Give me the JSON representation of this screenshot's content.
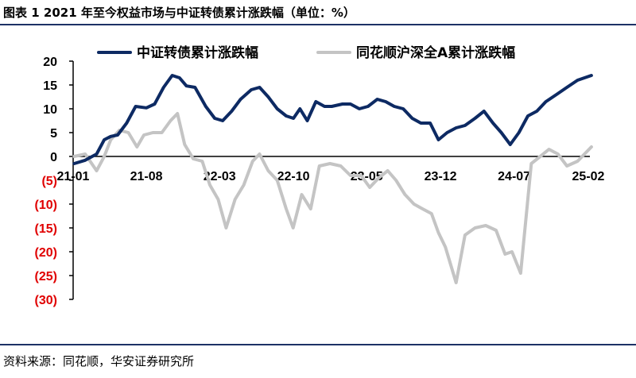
{
  "page": {
    "title": "图表 1 2021 年至今权益市场与中证转债累计涨跌幅（单位：%）",
    "source": "资料来源：同花顺，华安证券研究所"
  },
  "colors": {
    "series1": "#0d2a63",
    "series2": "#c4c4c4",
    "negative_tick": "#e00000",
    "positive_tick": "#000000",
    "axis": "#000000",
    "rule": "#1d3166"
  },
  "chart_data": {
    "type": "line",
    "ylim": [
      -30,
      20
    ],
    "yticks": [
      {
        "value": 20,
        "label": "20"
      },
      {
        "value": 15,
        "label": "15"
      },
      {
        "value": 10,
        "label": "10"
      },
      {
        "value": 5,
        "label": "5"
      },
      {
        "value": 0,
        "label": "0"
      },
      {
        "value": -5,
        "label": "(5)"
      },
      {
        "value": -10,
        "label": "(10)"
      },
      {
        "value": -15,
        "label": "(15)"
      },
      {
        "value": -20,
        "label": "(20)"
      },
      {
        "value": -25,
        "label": "(25)"
      },
      {
        "value": -30,
        "label": "(30)"
      }
    ],
    "x_start": "2021-01",
    "x_end": "2025-02",
    "xticks": [
      {
        "date": "2021-01",
        "label": "21-01"
      },
      {
        "date": "2021-08",
        "label": "21-08"
      },
      {
        "date": "2022-03",
        "label": "22-03"
      },
      {
        "date": "2022-10",
        "label": "22-10"
      },
      {
        "date": "2023-05",
        "label": "23-05"
      },
      {
        "date": "2023-12",
        "label": "23-12"
      },
      {
        "date": "2024-07",
        "label": "24-07"
      },
      {
        "date": "2025-02",
        "label": "25-02"
      }
    ],
    "grid": false,
    "legend_position": "top",
    "series": [
      {
        "name": "中证转债累计涨跌幅",
        "color": "#0d2a63",
        "points": [
          [
            "2021-01-04",
            -1.5
          ],
          [
            "2021-02-05",
            -0.8
          ],
          [
            "2021-03-10",
            0.5
          ],
          [
            "2021-04-01",
            3.5
          ],
          [
            "2021-04-20",
            4.2
          ],
          [
            "2021-05-10",
            4.5
          ],
          [
            "2021-06-05",
            7.0
          ],
          [
            "2021-07-01",
            10.5
          ],
          [
            "2021-08-01",
            10.2
          ],
          [
            "2021-08-25",
            11.0
          ],
          [
            "2021-09-20",
            14.5
          ],
          [
            "2021-10-15",
            17.0
          ],
          [
            "2021-11-05",
            16.5
          ],
          [
            "2021-11-25",
            14.8
          ],
          [
            "2021-12-20",
            14.5
          ],
          [
            "2022-01-20",
            10.5
          ],
          [
            "2022-02-15",
            8.0
          ],
          [
            "2022-03-10",
            7.5
          ],
          [
            "2022-04-05",
            9.5
          ],
          [
            "2022-05-01",
            12.0
          ],
          [
            "2022-06-01",
            14.0
          ],
          [
            "2022-06-25",
            14.5
          ],
          [
            "2022-07-20",
            12.5
          ],
          [
            "2022-08-15",
            10.0
          ],
          [
            "2022-09-10",
            8.5
          ],
          [
            "2022-10-01",
            8.0
          ],
          [
            "2022-10-20",
            10.0
          ],
          [
            "2022-11-10",
            7.5
          ],
          [
            "2022-12-05",
            11.5
          ],
          [
            "2022-12-30",
            10.5
          ],
          [
            "2023-01-20",
            10.5
          ],
          [
            "2023-02-20",
            11.0
          ],
          [
            "2023-03-15",
            11.0
          ],
          [
            "2023-04-10",
            10.0
          ],
          [
            "2023-05-05",
            10.5
          ],
          [
            "2023-06-01",
            12.0
          ],
          [
            "2023-06-25",
            11.5
          ],
          [
            "2023-07-20",
            10.5
          ],
          [
            "2023-08-15",
            10.0
          ],
          [
            "2023-09-10",
            8.0
          ],
          [
            "2023-10-05",
            7.0
          ],
          [
            "2023-11-01",
            7.0
          ],
          [
            "2023-11-25",
            3.5
          ],
          [
            "2023-12-20",
            5.0
          ],
          [
            "2024-01-15",
            6.0
          ],
          [
            "2024-02-10",
            6.5
          ],
          [
            "2024-03-10",
            8.0
          ],
          [
            "2024-04-05",
            9.5
          ],
          [
            "2024-05-01",
            7.0
          ],
          [
            "2024-05-25",
            5.0
          ],
          [
            "2024-06-20",
            2.5
          ],
          [
            "2024-07-15",
            5.0
          ],
          [
            "2024-08-10",
            8.5
          ],
          [
            "2024-09-05",
            9.5
          ],
          [
            "2024-10-01",
            11.5
          ],
          [
            "2024-11-01",
            13.0
          ],
          [
            "2024-12-01",
            14.5
          ],
          [
            "2025-01-01",
            16.0
          ],
          [
            "2025-02-10",
            17.0
          ]
        ]
      },
      {
        "name": "同花顺沪深全A累计涨跌幅",
        "color": "#c4c4c4",
        "points": [
          [
            "2021-01-04",
            0.0
          ],
          [
            "2021-02-05",
            0.5
          ],
          [
            "2021-03-10",
            -3.0
          ],
          [
            "2021-04-01",
            0.0
          ],
          [
            "2021-04-20",
            3.5
          ],
          [
            "2021-05-15",
            5.5
          ],
          [
            "2021-06-10",
            5.0
          ],
          [
            "2021-07-05",
            2.0
          ],
          [
            "2021-07-25",
            4.5
          ],
          [
            "2021-08-20",
            5.0
          ],
          [
            "2021-09-15",
            5.0
          ],
          [
            "2021-10-10",
            7.5
          ],
          [
            "2021-10-30",
            9.0
          ],
          [
            "2021-11-20",
            2.5
          ],
          [
            "2021-12-15",
            -0.5
          ],
          [
            "2022-01-10",
            -1.0
          ],
          [
            "2022-02-01",
            -6.0
          ],
          [
            "2022-02-25",
            -9.0
          ],
          [
            "2022-03-20",
            -15.0
          ],
          [
            "2022-04-15",
            -9.0
          ],
          [
            "2022-05-10",
            -6.0
          ],
          [
            "2022-06-05",
            -1.0
          ],
          [
            "2022-06-25",
            0.5
          ],
          [
            "2022-07-20",
            -3.0
          ],
          [
            "2022-08-15",
            -5.0
          ],
          [
            "2022-09-10",
            -11.0
          ],
          [
            "2022-09-30",
            -15.0
          ],
          [
            "2022-10-25",
            -8.0
          ],
          [
            "2022-11-20",
            -11.0
          ],
          [
            "2022-12-15",
            -2.0
          ],
          [
            "2023-01-15",
            -1.5
          ],
          [
            "2023-02-15",
            -2.0
          ],
          [
            "2023-03-15",
            -4.0
          ],
          [
            "2023-04-15",
            -4.0
          ],
          [
            "2023-05-10",
            -6.5
          ],
          [
            "2023-06-05",
            -4.5
          ],
          [
            "2023-07-01",
            -3.0
          ],
          [
            "2023-07-25",
            -5.0
          ],
          [
            "2023-08-20",
            -8.0
          ],
          [
            "2023-09-15",
            -10.0
          ],
          [
            "2023-10-10",
            -11.0
          ],
          [
            "2023-11-05",
            -12.0
          ],
          [
            "2023-11-25",
            -16.0
          ],
          [
            "2023-12-15",
            -19.0
          ],
          [
            "2024-01-15",
            -26.5
          ],
          [
            "2024-02-10",
            -16.5
          ],
          [
            "2024-03-10",
            -15.0
          ],
          [
            "2024-04-10",
            -14.5
          ],
          [
            "2024-05-10",
            -15.5
          ],
          [
            "2024-06-05",
            -20.5
          ],
          [
            "2024-06-25",
            -20.0
          ],
          [
            "2024-07-20",
            -24.5
          ],
          [
            "2024-08-20",
            -1.5
          ],
          [
            "2024-09-15",
            0.0
          ],
          [
            "2024-10-10",
            1.5
          ],
          [
            "2024-11-05",
            0.5
          ],
          [
            "2024-12-01",
            -2.0
          ],
          [
            "2025-01-01",
            -1.0
          ],
          [
            "2025-02-10",
            2.0
          ]
        ]
      }
    ]
  }
}
